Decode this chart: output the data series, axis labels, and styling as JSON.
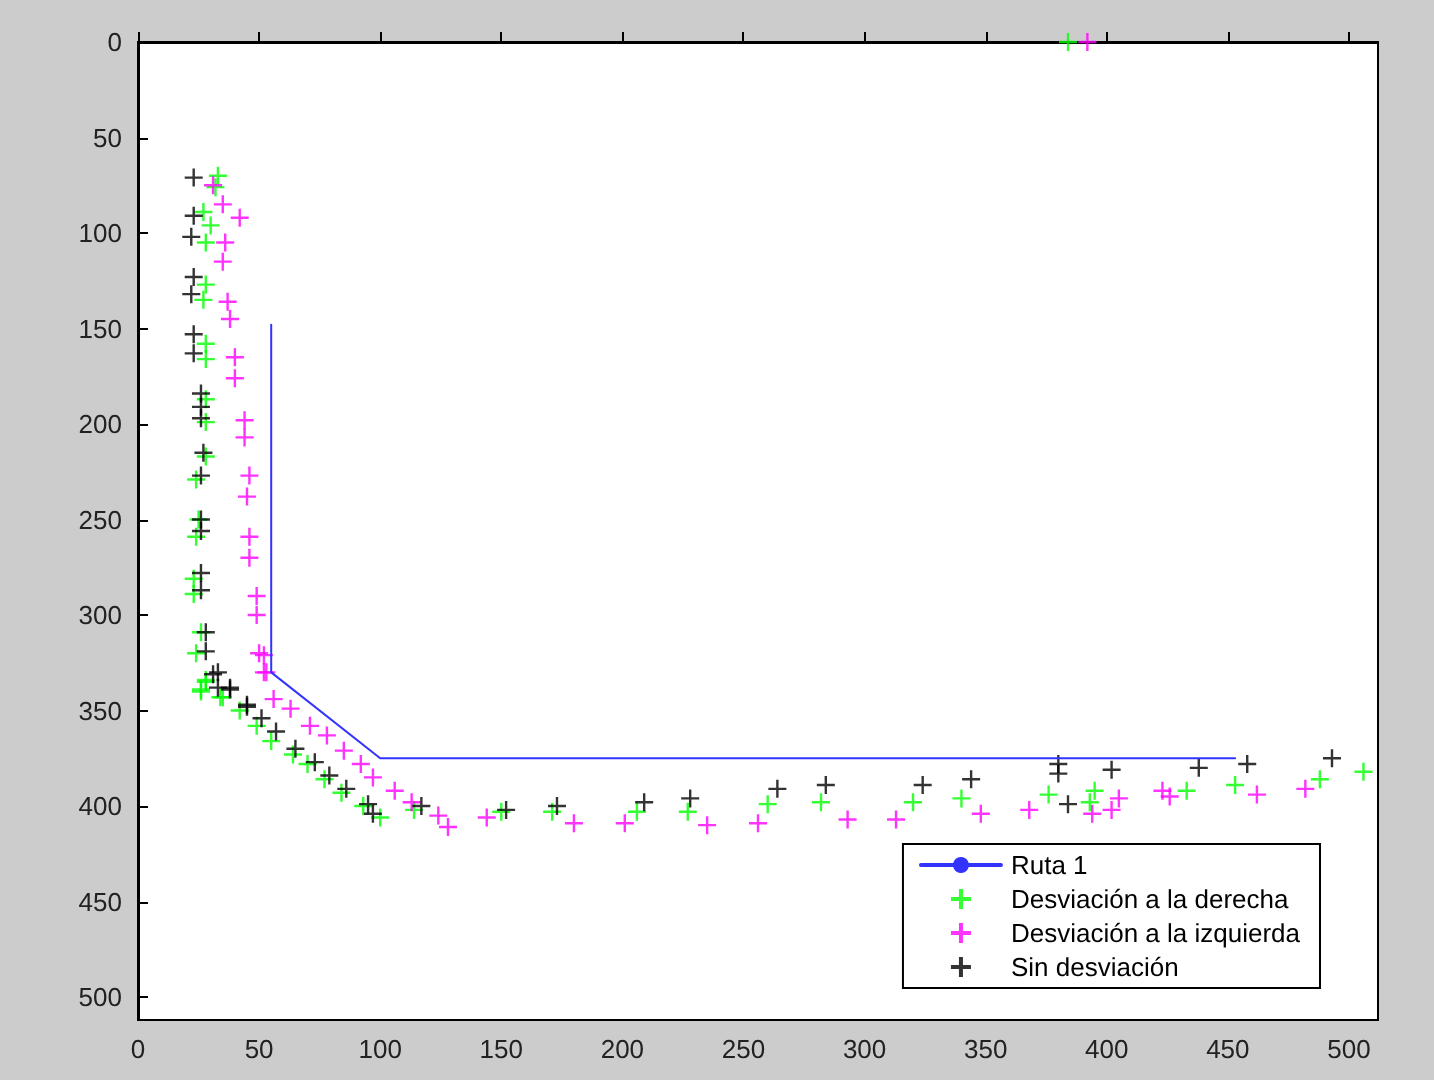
{
  "chart_data": {
    "type": "scatter",
    "xlim": [
      0,
      512
    ],
    "ylim": [
      512,
      0
    ],
    "xticks": [
      0,
      50,
      100,
      150,
      200,
      250,
      300,
      350,
      400,
      450,
      500
    ],
    "yticks": [
      0,
      50,
      100,
      150,
      200,
      250,
      300,
      350,
      400,
      450,
      500
    ],
    "grid": false,
    "legend": "bottom right",
    "series": [
      {
        "name": "Ruta 1",
        "type": "line",
        "color": "#3333ff",
        "line_style": "solid",
        "marker": "none",
        "x": [
          55,
          55,
          100,
          453
        ],
        "values": [
          148,
          330,
          375,
          375
        ]
      },
      {
        "name": "Desviación a la derecha",
        "color": "#00ff00",
        "marker": "cross",
        "x": [
          33,
          32,
          27,
          30,
          28,
          28,
          27,
          28,
          28,
          28,
          28,
          28,
          24,
          25,
          24,
          23,
          23,
          26,
          24,
          28,
          26,
          34,
          26,
          28,
          35,
          42,
          49,
          55,
          64,
          70,
          77,
          84,
          93,
          100,
          114,
          150,
          171,
          206,
          227,
          260,
          282,
          320,
          340,
          376,
          395,
          393,
          433,
          453,
          488,
          506,
          384
        ],
        "values": [
          70,
          76,
          89,
          96,
          105,
          127,
          135,
          158,
          166,
          187,
          199,
          217,
          229,
          250,
          259,
          281,
          289,
          309,
          320,
          334,
          340,
          343,
          339,
          335,
          343,
          350,
          358,
          366,
          373,
          378,
          386,
          393,
          400,
          406,
          402,
          403,
          403,
          403,
          403,
          399,
          398,
          398,
          396,
          394,
          392,
          398,
          392,
          389,
          386,
          382,
          0
        ]
      },
      {
        "name": "Desviación a la izquierda",
        "color": "#ff00ff",
        "marker": "cross",
        "x": [
          31,
          35,
          42,
          36,
          35,
          37,
          38,
          40,
          40,
          44,
          44,
          46,
          45,
          46,
          46,
          49,
          49,
          52,
          53,
          50,
          52,
          56,
          63,
          71,
          78,
          85,
          92,
          97,
          106,
          113,
          124,
          128,
          144,
          180,
          201,
          235,
          256,
          293,
          313,
          348,
          368,
          394,
          402,
          405,
          423,
          426,
          462,
          482,
          392
        ],
        "values": [
          75,
          85,
          92,
          105,
          115,
          136,
          145,
          165,
          176,
          198,
          207,
          227,
          238,
          259,
          270,
          290,
          300,
          321,
          330,
          320,
          330,
          344,
          349,
          358,
          363,
          371,
          378,
          385,
          392,
          398,
          405,
          411,
          406,
          409,
          409,
          410,
          409,
          407,
          407,
          404,
          402,
          404,
          402,
          396,
          392,
          395,
          394,
          391,
          0
        ]
      },
      {
        "name": "Sin desviación",
        "color": "#000000",
        "marker": "cross",
        "x": [
          23,
          23,
          22,
          23,
          22,
          23,
          23,
          26,
          26,
          26,
          27,
          26,
          26,
          26,
          26,
          26,
          28,
          28,
          33,
          38,
          45,
          31,
          33,
          38,
          45,
          51,
          57,
          65,
          73,
          79,
          86,
          95,
          97,
          117,
          152,
          173,
          209,
          228,
          264,
          284,
          324,
          344,
          380,
          380,
          384,
          402,
          438,
          458,
          493
        ],
        "values": [
          71,
          91,
          102,
          123,
          132,
          153,
          163,
          184,
          191,
          197,
          215,
          227,
          250,
          256,
          278,
          287,
          309,
          319,
          330,
          338,
          348,
          331,
          338,
          339,
          347,
          354,
          361,
          370,
          377,
          384,
          391,
          399,
          404,
          400,
          402,
          400,
          398,
          396,
          391,
          389,
          389,
          386,
          378,
          383,
          399,
          381,
          380,
          378,
          375
        ]
      }
    ]
  }
}
